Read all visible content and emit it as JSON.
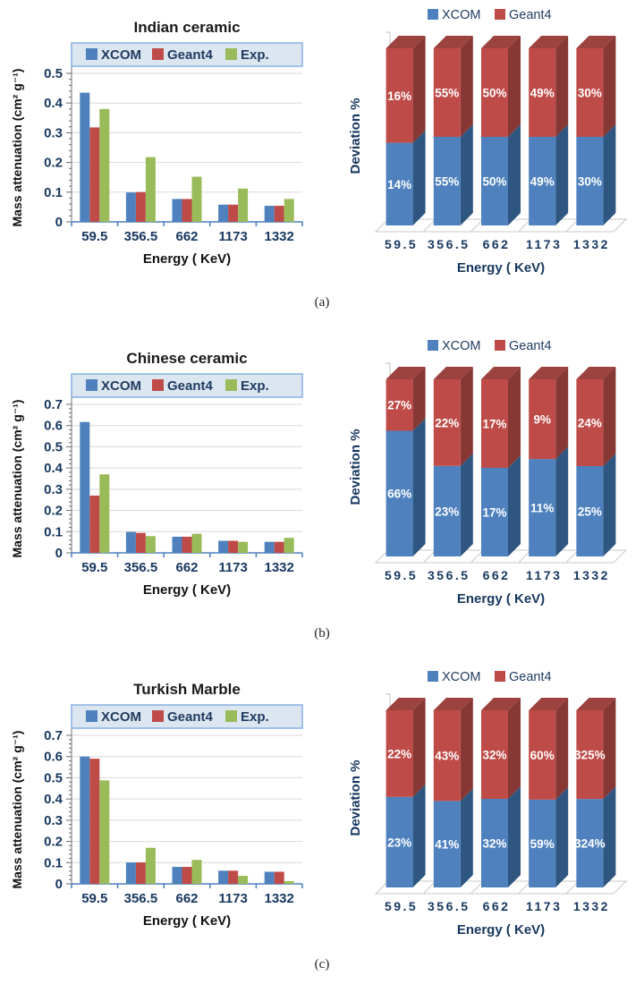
{
  "figure": {
    "captions": [
      {
        "id": "a",
        "label": "(a)"
      },
      {
        "id": "b",
        "label": "(b)"
      },
      {
        "id": "c",
        "label": "(c)"
      }
    ]
  },
  "colors": {
    "xcom": "#4E81BD",
    "xcom_side": "#2F5680",
    "geant4": "#BE4B48",
    "geant4_side": "#873734",
    "geant4_top": "#9C423F",
    "exp": "#9ABB59",
    "legend_band_bg": "#DCE6F1",
    "legend_band_border": "#8EB4E3",
    "grid": "#D9D9D9",
    "y_axis": "#6E6E6E",
    "x_axis": "#4F81BD",
    "floor": "#C8C8C8",
    "tick_text": "#17375E",
    "legend_text": "#1F3A5F",
    "title_text": "#1A1A1A",
    "axis_title_text": "#111111",
    "bar_label_text": "#FFFFFF"
  },
  "chart_data": [
    {
      "id": "indian-ceramic-mass-attenuation",
      "type": "bar",
      "title": "Indian ceramic",
      "xlabel": "Energy ( KeV)",
      "ylabel": "Mass attenuation (cm² g⁻¹)",
      "categories": [
        "59.5",
        "356.5",
        "662",
        "1173",
        "1332"
      ],
      "series": [
        {
          "name": "XCOM",
          "color_key": "xcom",
          "values": [
            0.435,
            0.099,
            0.077,
            0.058,
            0.054
          ]
        },
        {
          "name": "Geant4",
          "color_key": "geant4",
          "values": [
            0.318,
            0.1,
            0.077,
            0.058,
            0.054
          ]
        },
        {
          "name": "Exp.",
          "color_key": "exp",
          "values": [
            0.38,
            0.218,
            0.152,
            0.112,
            0.077
          ]
        }
      ],
      "ylim": [
        0,
        0.5
      ],
      "ytick_step": 0.1,
      "ytick_minor_step": 0.02,
      "grid": true,
      "legend_position": "top-band"
    },
    {
      "id": "indian-ceramic-deviation",
      "type": "bar-3d-stacked",
      "title": "",
      "xlabel": "Energy ( KeV)",
      "ylabel": "Deviation %",
      "categories": [
        "59.5",
        "356.5",
        "662",
        "1173",
        "1332"
      ],
      "series": [
        {
          "name": "XCOM",
          "color_key": "xcom",
          "side_color_key": "xcom_side",
          "values": [
            14,
            55,
            50,
            49,
            30
          ],
          "labels": [
            "14%",
            "55%",
            "50%",
            "49%",
            "30%"
          ]
        },
        {
          "name": "Geant4",
          "color_key": "geant4",
          "side_color_key": "geant4_side",
          "top_color_key": "geant4_top",
          "values": [
            16,
            55,
            50,
            49,
            30
          ],
          "labels": [
            "16%",
            "55%",
            "50%",
            "49%",
            "30%"
          ]
        }
      ],
      "stack": "percent",
      "legend_position": "top"
    },
    {
      "id": "chinese-ceramic-mass-attenuation",
      "type": "bar",
      "title": "Chinese ceramic",
      "xlabel": "Energy ( KeV)",
      "ylabel": "Mass attenuation (cm² g⁻¹)",
      "categories": [
        "59.5",
        "356.5",
        "662",
        "1173",
        "1332"
      ],
      "series": [
        {
          "name": "XCOM",
          "color_key": "xcom",
          "values": [
            0.617,
            0.099,
            0.076,
            0.057,
            0.052
          ]
        },
        {
          "name": "Geant4",
          "color_key": "geant4",
          "values": [
            0.27,
            0.094,
            0.076,
            0.057,
            0.052
          ]
        },
        {
          "name": "Exp.",
          "color_key": "exp",
          "values": [
            0.37,
            0.079,
            0.09,
            0.052,
            0.071
          ]
        }
      ],
      "ylim": [
        0,
        0.7
      ],
      "ytick_step": 0.1,
      "ytick_minor_step": 0.02,
      "grid": true,
      "legend_position": "top-band"
    },
    {
      "id": "chinese-ceramic-deviation",
      "type": "bar-3d-stacked",
      "title": "",
      "xlabel": "Energy ( KeV)",
      "ylabel": "Deviation %",
      "categories": [
        "59.5",
        "356.5",
        "662",
        "1173",
        "1332"
      ],
      "series": [
        {
          "name": "XCOM",
          "color_key": "xcom",
          "side_color_key": "xcom_side",
          "values": [
            66,
            23,
            17,
            11,
            25
          ],
          "labels": [
            "66%",
            "23%",
            "17%",
            "11%",
            "25%"
          ]
        },
        {
          "name": "Geant4",
          "color_key": "geant4",
          "side_color_key": "geant4_side",
          "top_color_key": "geant4_top",
          "values": [
            27,
            22,
            17,
            9,
            24
          ],
          "labels": [
            "27%",
            "22%",
            "17%",
            "9%",
            "24%"
          ]
        }
      ],
      "stack": "percent",
      "legend_position": "top"
    },
    {
      "id": "turkish-marble-mass-attenuation",
      "type": "bar",
      "title": "Turkish Marble",
      "xlabel": "Energy ( KeV)",
      "ylabel": "Mass attenuation (cm² g⁻¹)",
      "categories": [
        "59.5",
        "356.5",
        "662",
        "1173",
        "1332"
      ],
      "series": [
        {
          "name": "XCOM",
          "color_key": "xcom",
          "values": [
            0.6,
            0.101,
            0.08,
            0.062,
            0.057
          ]
        },
        {
          "name": "Geant4",
          "color_key": "geant4",
          "values": [
            0.59,
            0.101,
            0.08,
            0.062,
            0.057
          ]
        },
        {
          "name": "Exp.",
          "color_key": "exp",
          "values": [
            0.488,
            0.17,
            0.113,
            0.038,
            0.013
          ]
        }
      ],
      "ylim": [
        0,
        0.7
      ],
      "ytick_step": 0.1,
      "ytick_minor_step": 0.02,
      "grid": true,
      "legend_position": "top-band"
    },
    {
      "id": "turkish-marble-deviation",
      "type": "bar-3d-stacked",
      "title": "",
      "xlabel": "Energy ( KeV)",
      "ylabel": "Deviation %",
      "categories": [
        "59.5",
        "356.5",
        "662",
        "1173",
        "1332"
      ],
      "series": [
        {
          "name": "XCOM",
          "color_key": "xcom",
          "side_color_key": "xcom_side",
          "values": [
            23,
            41,
            32,
            59,
            324
          ],
          "labels": [
            "23%",
            "41%",
            "32%",
            "59%",
            "324%"
          ]
        },
        {
          "name": "Geant4",
          "color_key": "geant4",
          "side_color_key": "geant4_side",
          "top_color_key": "geant4_top",
          "values": [
            22,
            43,
            32,
            60,
            325
          ],
          "labels": [
            "22%",
            "43%",
            "32%",
            "60%",
            "325%"
          ]
        }
      ],
      "stack": "percent",
      "legend_position": "top"
    }
  ]
}
